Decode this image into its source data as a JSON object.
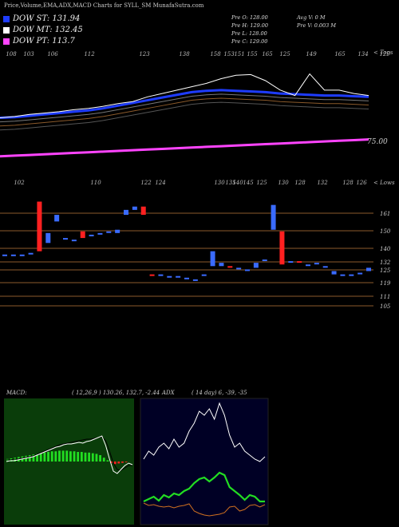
{
  "header": {
    "title": "Price,Volume,EMA,ADX,MACD Charts for SYLL_SM MunafaSutra.com"
  },
  "legend": [
    {
      "label": "DOW ST: 131.94",
      "color": "#1e3cff"
    },
    {
      "label": "DOW MT: 132.45",
      "color": "#ffffff"
    },
    {
      "label": "DOW PT: 113.7",
      "color": "#ff44ff"
    }
  ],
  "ohlc": {
    "open": "Pre   O: 128.00",
    "high": "Pre   H: 129.00",
    "low": "Pre   L: 128.00",
    "close": "Pre   C: 129.00",
    "avg_vol": "Avg V: 0  M",
    "prev_vol": "Pre   V: 0.003 M"
  },
  "top_axis_label": "< Tops",
  "low_axis_label": "< Lows",
  "price_label_75": "75.00",
  "macd_label": "MACD:",
  "macd_values": "( 12,26,9 ) 130.26,  132.7,  -2.44",
  "adx_label": "ADX",
  "adx_values": "( 14  day) 6,  -39,  -35",
  "chart_data": [
    {
      "type": "line",
      "title": "",
      "series": [
        {
          "name": "DOW ST",
          "color": "#1e3cff",
          "values": [
            117,
            118,
            120,
            122,
            124,
            126,
            128,
            131,
            135,
            139,
            143,
            147,
            151,
            155,
            157,
            158,
            157,
            156,
            155,
            153,
            152,
            151,
            150,
            150,
            149,
            148
          ]
        },
        {
          "name": "DOW MT",
          "color": "#ffffff",
          "values": [
            117,
            119,
            122,
            124,
            126,
            129,
            131,
            134,
            138,
            141,
            148,
            153,
            158,
            163,
            168,
            175,
            180,
            181,
            172,
            158,
            150,
            182,
            158,
            158,
            153,
            150
          ]
        },
        {
          "name": "DOW PT",
          "color": "#ff44ff",
          "values": [
            60,
            61,
            62,
            63,
            64,
            65,
            66,
            67,
            68,
            69,
            70,
            71,
            72,
            73,
            74,
            75,
            76,
            77,
            78,
            79,
            80,
            81,
            82,
            83,
            84,
            85
          ]
        }
      ],
      "top_labels": [
        "108",
        "103",
        "106",
        "112",
        "123",
        "138",
        "158",
        "153",
        "151",
        "155",
        "165",
        "125",
        "149",
        "165",
        "134",
        "129"
      ],
      "bottom_labels": [
        "102",
        "110",
        "122",
        "124",
        "130",
        "135",
        "140",
        "145",
        "125",
        "130",
        "128",
        "132",
        "128",
        "126"
      ],
      "price_ticks": [
        "75.00"
      ]
    },
    {
      "type": "bar",
      "title": "",
      "note": "candles",
      "price_ticks": [
        "161",
        "150",
        "140",
        "132",
        "125",
        "119",
        "111",
        "105"
      ],
      "candles": [
        {
          "o": 136,
          "c": 136,
          "color": "#3a6bff"
        },
        {
          "o": 136,
          "c": 136,
          "color": "#3a6bff"
        },
        {
          "o": 136,
          "c": 136,
          "color": "#3a6bff"
        },
        {
          "o": 137,
          "c": 137,
          "color": "#3a6bff"
        },
        {
          "o": 168,
          "c": 138,
          "color": "#ff2020"
        },
        {
          "o": 149,
          "c": 143,
          "color": "#3a6bff"
        },
        {
          "o": 156,
          "c": 160,
          "color": "#3a6bff"
        },
        {
          "o": 146,
          "c": 146,
          "color": "#3a6bff"
        },
        {
          "o": 145,
          "c": 145,
          "color": "#3a6bff"
        },
        {
          "o": 146,
          "c": 150,
          "color": "#ff2020"
        },
        {
          "o": 148,
          "c": 148,
          "color": "#3a6bff"
        },
        {
          "o": 149,
          "c": 149,
          "color": "#3a6bff"
        },
        {
          "o": 150,
          "c": 150,
          "color": "#3a6bff"
        },
        {
          "o": 149,
          "c": 151,
          "color": "#3a6bff"
        },
        {
          "o": 160,
          "c": 163,
          "color": "#3a6bff"
        },
        {
          "o": 163,
          "c": 165,
          "color": "#3a6bff"
        },
        {
          "o": 165,
          "c": 160,
          "color": "#ff2020"
        },
        {
          "o": 124,
          "c": 124,
          "color": "#ff2020"
        },
        {
          "o": 124,
          "c": 124,
          "color": "#3a6bff"
        },
        {
          "o": 123,
          "c": 123,
          "color": "#3a6bff"
        },
        {
          "o": 123,
          "c": 123,
          "color": "#3a6bff"
        },
        {
          "o": 122,
          "c": 122,
          "color": "#3a6bff"
        },
        {
          "o": 121,
          "c": 121,
          "color": "#3a6bff"
        },
        {
          "o": 124,
          "c": 124,
          "color": "#3a6bff"
        },
        {
          "o": 138,
          "c": 129,
          "color": "#3a6bff"
        },
        {
          "o": 129,
          "c": 131,
          "color": "#3a6bff"
        },
        {
          "o": 129,
          "c": 129,
          "color": "#ff2020"
        },
        {
          "o": 128,
          "c": 128,
          "color": "#3a6bff"
        },
        {
          "o": 127,
          "c": 127,
          "color": "#3a6bff"
        },
        {
          "o": 128,
          "c": 131,
          "color": "#3a6bff"
        },
        {
          "o": 133,
          "c": 133,
          "color": "#3a6bff"
        },
        {
          "o": 151,
          "c": 166,
          "color": "#3a6bff"
        },
        {
          "o": 150,
          "c": 130,
          "color": "#ff2020"
        },
        {
          "o": 132,
          "c": 132,
          "color": "#3a6bff"
        },
        {
          "o": 132,
          "c": 132,
          "color": "#ff2020"
        },
        {
          "o": 130,
          "c": 130,
          "color": "#3a6bff"
        },
        {
          "o": 131,
          "c": 131,
          "color": "#3a6bff"
        },
        {
          "o": 129,
          "c": 129,
          "color": "#3a6bff"
        },
        {
          "o": 126,
          "c": 124,
          "color": "#3a6bff"
        },
        {
          "o": 124,
          "c": 124,
          "color": "#3a6bff"
        },
        {
          "o": 124,
          "c": 124,
          "color": "#3a6bff"
        },
        {
          "o": 125,
          "c": 125,
          "color": "#3a6bff"
        },
        {
          "o": 128,
          "c": 126,
          "color": "#3a6bff"
        }
      ]
    },
    {
      "type": "line",
      "title": "",
      "note": "MACD",
      "histogram": [
        4,
        5,
        6,
        7,
        8,
        9,
        10,
        11,
        12,
        13,
        14,
        15,
        16,
        16,
        17,
        17,
        17,
        16,
        16,
        15,
        15,
        14,
        14,
        13,
        12,
        10,
        6,
        2,
        -2,
        -4,
        -3,
        -2,
        -1,
        0
      ]
    },
    {
      "type": "line",
      "title": "",
      "note": "ADX",
      "series": [
        {
          "name": "white",
          "color": "#ffffff"
        },
        {
          "name": "green",
          "color": "#22dd22"
        },
        {
          "name": "orange",
          "color": "#d07020"
        }
      ]
    }
  ]
}
